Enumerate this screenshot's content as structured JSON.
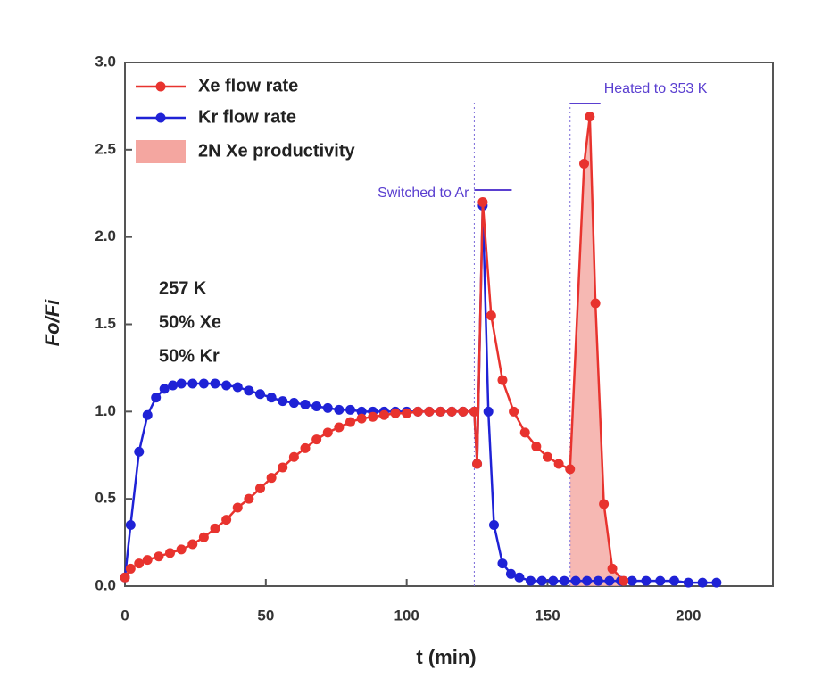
{
  "chart_data": {
    "type": "line",
    "xlabel": "t (min)",
    "ylabel": "Fo/Fi",
    "xlim": [
      0,
      230
    ],
    "ylim": [
      0,
      3.0
    ],
    "xticks": [
      0,
      50,
      100,
      150,
      200
    ],
    "yticks": [
      {
        "value": 0,
        "label": "0.0"
      },
      {
        "value": 0.5,
        "label": "0.5"
      },
      {
        "value": 1,
        "label": "1.0"
      },
      {
        "value": 1.5,
        "label": "1.5"
      },
      {
        "value": 2,
        "label": "2.0"
      },
      {
        "value": 2.5,
        "label": "2.5"
      },
      {
        "value": 3,
        "label": "3.0"
      }
    ],
    "series": [
      {
        "name": "Xe flow rate",
        "color": "#e8332e",
        "x": [
          0,
          2,
          5,
          8,
          12,
          16,
          20,
          24,
          28,
          32,
          36,
          40,
          44,
          48,
          52,
          56,
          60,
          64,
          68,
          72,
          76,
          80,
          84,
          88,
          92,
          96,
          100,
          104,
          108,
          112,
          116,
          120,
          124,
          125,
          127,
          130,
          134,
          138,
          142,
          146,
          150,
          154,
          158,
          163,
          165,
          167,
          170,
          173,
          177
        ],
        "values": [
          0.05,
          0.1,
          0.13,
          0.15,
          0.17,
          0.19,
          0.21,
          0.24,
          0.28,
          0.33,
          0.38,
          0.45,
          0.5,
          0.56,
          0.62,
          0.68,
          0.74,
          0.79,
          0.84,
          0.88,
          0.91,
          0.94,
          0.96,
          0.97,
          0.98,
          0.99,
          0.99,
          1.0,
          1.0,
          1.0,
          1.0,
          1.0,
          1.0,
          0.7,
          2.2,
          1.55,
          1.18,
          1.0,
          0.88,
          0.8,
          0.74,
          0.7,
          0.67,
          2.42,
          2.69,
          1.62,
          0.47,
          0.1,
          0.03
        ]
      },
      {
        "name": "Kr flow rate",
        "color": "#1f22d6",
        "x": [
          0,
          2,
          5,
          8,
          11,
          14,
          17,
          20,
          24,
          28,
          32,
          36,
          40,
          44,
          48,
          52,
          56,
          60,
          64,
          68,
          72,
          76,
          80,
          84,
          88,
          92,
          96,
          100,
          104,
          108,
          112,
          116,
          120,
          124,
          125,
          127,
          129,
          131,
          134,
          137,
          140,
          144,
          148,
          152,
          156,
          160,
          164,
          168,
          172,
          176,
          180,
          185,
          190,
          195,
          200,
          205,
          210
        ],
        "values": [
          0.05,
          0.35,
          0.77,
          0.98,
          1.08,
          1.13,
          1.15,
          1.16,
          1.16,
          1.16,
          1.16,
          1.15,
          1.14,
          1.12,
          1.1,
          1.08,
          1.06,
          1.05,
          1.04,
          1.03,
          1.02,
          1.01,
          1.01,
          1.0,
          1.0,
          1.0,
          1.0,
          1.0,
          1.0,
          1.0,
          1.0,
          1.0,
          1.0,
          1.0,
          0.7,
          2.18,
          1.0,
          0.35,
          0.13,
          0.07,
          0.05,
          0.03,
          0.03,
          0.03,
          0.03,
          0.03,
          0.03,
          0.03,
          0.03,
          0.03,
          0.03,
          0.03,
          0.03,
          0.03,
          0.02,
          0.02,
          0.02
        ]
      }
    ],
    "area": {
      "name": "2N Xe productivity",
      "color": "#f4a6a0",
      "x_range": [
        158,
        176
      ]
    },
    "events": [
      {
        "label": "Switched to Ar",
        "x": 124
      },
      {
        "label": "Heated to 353 K",
        "x": 158
      }
    ],
    "annotations": [
      {
        "text": "257 K",
        "color": "#222222"
      },
      {
        "text": "50% Xe",
        "color": "#e8332e"
      },
      {
        "text": "50% Kr",
        "color": "#1f22d6"
      }
    ]
  }
}
